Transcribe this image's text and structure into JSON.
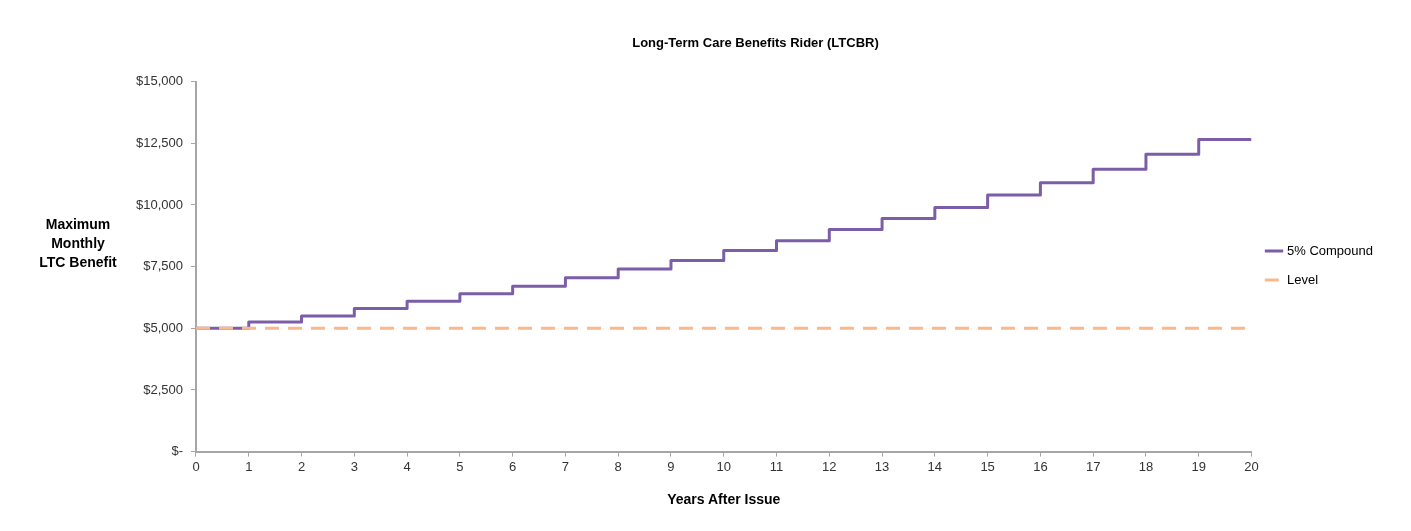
{
  "chart_data": {
    "type": "step",
    "title": "Long-Term Care Benefits Rider (LTCBR)",
    "xlabel": "Years After Issue",
    "ylabel": "Maximum Monthly LTC Benefit",
    "x": [
      0,
      1,
      2,
      3,
      4,
      5,
      6,
      7,
      8,
      9,
      10,
      11,
      12,
      13,
      14,
      15,
      16,
      17,
      18,
      19,
      20
    ],
    "series": [
      {
        "name": "5% Compound",
        "color": "#7b5ea7",
        "line_style": "solid",
        "values": [
          5000,
          5250,
          5500,
          5800,
          6100,
          6400,
          6700,
          7050,
          7400,
          7750,
          8150,
          8550,
          9000,
          9450,
          9900,
          10400,
          10900,
          11450,
          12050,
          12650,
          12650
        ]
      },
      {
        "name": "Level",
        "type": "line",
        "color": "#f9b98a",
        "line_style": "dashed",
        "values": [
          5000,
          5000,
          5000,
          5000,
          5000,
          5000,
          5000,
          5000,
          5000,
          5000,
          5000,
          5000,
          5000,
          5000,
          5000,
          5000,
          5000,
          5000,
          5000,
          5000,
          5000
        ]
      }
    ],
    "xlim": [
      0,
      20
    ],
    "xticks": [
      0,
      1,
      2,
      3,
      4,
      5,
      6,
      7,
      8,
      9,
      10,
      11,
      12,
      13,
      14,
      15,
      16,
      17,
      18,
      19,
      20
    ],
    "ylim": [
      0,
      15000
    ],
    "yticks": [
      {
        "value": 0,
        "label": "$-"
      },
      {
        "value": 2500,
        "label": "$2,500"
      },
      {
        "value": 5000,
        "label": "$5,000"
      },
      {
        "value": 7500,
        "label": "$7,500"
      },
      {
        "value": 10000,
        "label": "$10,000"
      },
      {
        "value": 12500,
        "label": "$12,500"
      },
      {
        "value": 15000,
        "label": "$15,000"
      }
    ],
    "grid": false,
    "legend": "right",
    "marker": "none"
  }
}
